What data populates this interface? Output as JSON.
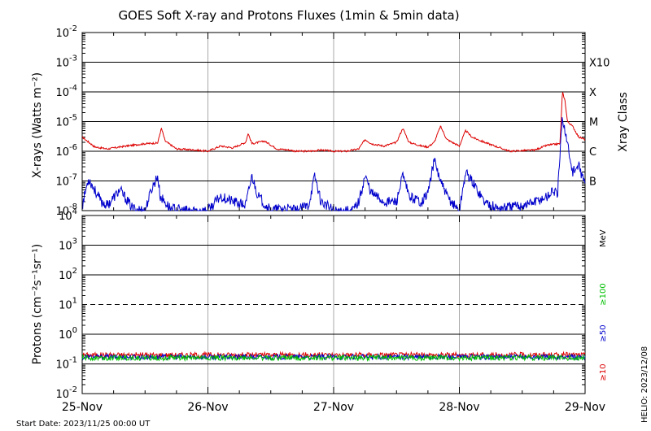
{
  "chart_data": [
    {
      "type": "line",
      "title": "GOES Soft X-ray and Protons Fluxes   (1min & 5min data)",
      "ylabel": "X-rays (Watts m⁻²)",
      "y_scale": "log",
      "ylim": [
        1e-08,
        0.01
      ],
      "y_ticks": [
        {
          "value": 1e-08,
          "base": "10",
          "exp": "-8"
        },
        {
          "value": 1e-07,
          "base": "10",
          "exp": "-7"
        },
        {
          "value": 1e-06,
          "base": "10",
          "exp": "-6"
        },
        {
          "value": 1e-05,
          "base": "10",
          "exp": "-5"
        },
        {
          "value": 0.0001,
          "base": "10",
          "exp": "-4"
        },
        {
          "value": 0.001,
          "base": "10",
          "exp": "-3"
        },
        {
          "value": 0.01,
          "base": "10",
          "exp": "-2"
        }
      ],
      "right_label": "Xray Class",
      "class_labels": [
        {
          "label": "X10",
          "value": 0.001
        },
        {
          "label": "X",
          "value": 0.0001
        },
        {
          "label": "M",
          "value": 1e-05
        },
        {
          "label": "C",
          "value": 1e-06
        },
        {
          "label": "B",
          "value": 1e-07
        }
      ],
      "xlim": [
        "2023-11-25",
        "2023-11-29"
      ],
      "series": [
        {
          "color": "#dd0000",
          "t": [
            0,
            0.1,
            0.2,
            0.35,
            0.5,
            0.6,
            0.63,
            0.66,
            0.75,
            0.9,
            1.0,
            1.1,
            1.2,
            1.3,
            1.32,
            1.35,
            1.45,
            1.55,
            1.65,
            1.7,
            1.8,
            1.9,
            2.0,
            2.1,
            2.2,
            2.25,
            2.3,
            2.4,
            2.5,
            2.55,
            2.6,
            2.7,
            2.75,
            2.8,
            2.85,
            2.9,
            3.0,
            3.05,
            3.1,
            3.2,
            3.4,
            3.6,
            3.7,
            3.8,
            3.82,
            3.84,
            3.86,
            3.9,
            3.95,
            4.0
          ],
          "values": [
            3e-06,
            1.4e-06,
            1.2e-06,
            1.5e-06,
            1.8e-06,
            1.9e-06,
            6e-06,
            2.2e-06,
            1.2e-06,
            1.1e-06,
            1e-06,
            1.5e-06,
            1.3e-06,
            2e-06,
            4e-06,
            1.8e-06,
            2.2e-06,
            1.2e-06,
            1.1e-06,
            1e-06,
            1e-06,
            1.1e-06,
            1e-06,
            1e-06,
            1.2e-06,
            2.5e-06,
            1.8e-06,
            1.5e-06,
            2e-06,
            6e-06,
            2e-06,
            1.5e-06,
            1.4e-06,
            2e-06,
            7e-06,
            2.5e-06,
            1.5e-06,
            5e-06,
            3e-06,
            2e-06,
            1e-06,
            1.1e-06,
            1.6e-06,
            1.8e-06,
            0.0001,
            5e-05,
            1e-05,
            7e-06,
            3e-06,
            2.5e-06
          ]
        },
        {
          "color": "#0000cc",
          "t": [
            0,
            0.05,
            0.15,
            0.2,
            0.3,
            0.4,
            0.5,
            0.55,
            0.6,
            0.62,
            0.7,
            0.8,
            0.9,
            1.0,
            1.1,
            1.2,
            1.3,
            1.35,
            1.4,
            1.5,
            1.6,
            1.7,
            1.8,
            1.85,
            1.9,
            2.0,
            2.1,
            2.15,
            2.2,
            2.25,
            2.3,
            2.4,
            2.5,
            2.55,
            2.6,
            2.7,
            2.75,
            2.8,
            2.85,
            2.9,
            3.0,
            3.05,
            3.1,
            3.2,
            3.3,
            3.5,
            3.6,
            3.7,
            3.75,
            3.78,
            3.82,
            3.85,
            3.9,
            3.95,
            4.0
          ],
          "values": [
            1.5e-08,
            1.2e-07,
            2e-08,
            1.5e-08,
            5e-08,
            1.2e-08,
            1e-08,
            5e-08,
            1.5e-07,
            3e-08,
            1.2e-08,
            1e-08,
            1e-08,
            1e-08,
            3e-08,
            2e-08,
            1.5e-08,
            1.5e-07,
            3e-08,
            1e-08,
            1.2e-08,
            1e-08,
            1.5e-08,
            1.5e-07,
            2e-08,
            1e-08,
            1e-08,
            1e-08,
            2e-08,
            1.5e-07,
            4e-08,
            2e-08,
            2e-08,
            1.5e-07,
            3e-08,
            2e-08,
            4e-08,
            5e-07,
            1e-07,
            3e-08,
            1e-08,
            2e-07,
            1e-07,
            2e-08,
            1.2e-08,
            1.5e-08,
            2e-08,
            3e-08,
            5e-08,
            3e-08,
            1.5e-05,
            3e-06,
            2e-07,
            3e-07,
            8e-08
          ]
        }
      ],
      "grid": true
    },
    {
      "type": "line",
      "ylabel": "Protons (cm⁻²s⁻¹sr⁻¹)",
      "y_scale": "log",
      "ylim": [
        0.01,
        10000
      ],
      "y_ticks": [
        {
          "value": 0.01,
          "base": "10",
          "exp": "-2"
        },
        {
          "value": 0.1,
          "base": "10",
          "exp": "-1"
        },
        {
          "value": 1,
          "base": "10",
          "exp": "0"
        },
        {
          "value": 10,
          "base": "10",
          "exp": "1"
        },
        {
          "value": 100,
          "base": "10",
          "exp": "2"
        },
        {
          "value": 1000,
          "base": "10",
          "exp": "3"
        },
        {
          "value": 10000,
          "base": "10",
          "exp": "4"
        }
      ],
      "threshold_dashed": 10,
      "unit": "MeV",
      "energy_labels": [
        {
          "label": "≥100",
          "color": "#00c000"
        },
        {
          "label": "≥50",
          "color": "#0000cc"
        },
        {
          "label": "≥10",
          "color": "#dd0000"
        }
      ],
      "series": [
        {
          "name": "≥10",
          "color": "#dd0000",
          "baseline": 0.2
        },
        {
          "name": "≥50",
          "color": "#0000cc",
          "baseline": 0.17
        },
        {
          "name": "≥100",
          "color": "#00c000",
          "baseline": 0.16
        }
      ],
      "x_ticks": [
        "25-Nov",
        "26-Nov",
        "27-Nov",
        "28-Nov",
        "29-Nov"
      ],
      "grid": true
    }
  ],
  "footer": {
    "start_date": "Start Date: 2023/11/25 00:00 UT",
    "credit": "HELIO: 2023/12/08"
  }
}
